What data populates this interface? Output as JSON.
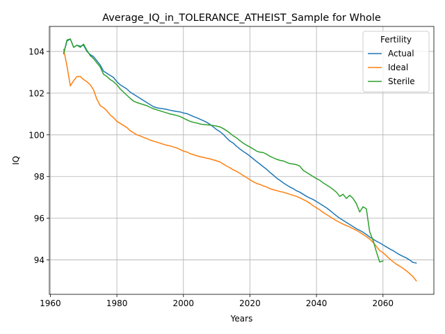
{
  "chart_data": {
    "type": "line",
    "title": "Average_IQ_in_TOLERANCE_ATHEIST_Sample for Whole",
    "xlabel": "Years",
    "ylabel": "IQ",
    "xlim": [
      1959.7,
      2075.3
    ],
    "ylim": [
      92.35,
      105.2
    ],
    "xticks": [
      1960,
      1980,
      2000,
      2020,
      2040,
      2060
    ],
    "yticks": [
      94,
      96,
      98,
      100,
      102,
      104
    ],
    "grid": true,
    "legend": {
      "title": "Fertility",
      "position": "top-right"
    },
    "series": [
      {
        "name": "Actual",
        "color": "#1f77b4",
        "x": [
          1964,
          1965,
          1966,
          1967,
          1968,
          1969,
          1970,
          1971,
          1972,
          1973,
          1974,
          1975,
          1976,
          1977,
          1978,
          1979,
          1980,
          1981,
          1982,
          1983,
          1984,
          1985,
          1986,
          1987,
          1988,
          1989,
          1990,
          1991,
          1992,
          1993,
          1994,
          1995,
          1996,
          1997,
          1998,
          1999,
          2000,
          2001,
          2002,
          2003,
          2004,
          2005,
          2006,
          2007,
          2008,
          2009,
          2010,
          2011,
          2012,
          2013,
          2014,
          2015,
          2016,
          2017,
          2018,
          2019,
          2020,
          2021,
          2022,
          2023,
          2024,
          2025,
          2026,
          2027,
          2028,
          2029,
          2030,
          2031,
          2032,
          2033,
          2034,
          2035,
          2036,
          2037,
          2038,
          2039,
          2040,
          2041,
          2042,
          2043,
          2044,
          2045,
          2046,
          2047,
          2048,
          2049,
          2050,
          2051,
          2052,
          2053,
          2054,
          2055,
          2056,
          2057,
          2058,
          2059,
          2060,
          2061,
          2062,
          2063,
          2064,
          2065,
          2066,
          2067,
          2068,
          2069,
          2070
        ],
        "values": [
          103.9,
          104.5,
          104.6,
          104.2,
          104.3,
          104.25,
          104.3,
          104.0,
          103.85,
          103.75,
          103.55,
          103.35,
          103.05,
          102.95,
          102.85,
          102.75,
          102.55,
          102.4,
          102.3,
          102.2,
          102.05,
          101.95,
          101.85,
          101.75,
          101.65,
          101.55,
          101.45,
          101.35,
          101.3,
          101.27,
          101.25,
          101.22,
          101.18,
          101.15,
          101.12,
          101.1,
          101.05,
          101.02,
          100.95,
          100.88,
          100.82,
          100.75,
          100.68,
          100.6,
          100.5,
          100.38,
          100.25,
          100.15,
          100.02,
          99.85,
          99.7,
          99.6,
          99.45,
          99.32,
          99.2,
          99.1,
          98.98,
          98.85,
          98.72,
          98.6,
          98.47,
          98.35,
          98.2,
          98.07,
          97.93,
          97.82,
          97.7,
          97.6,
          97.5,
          97.42,
          97.32,
          97.25,
          97.15,
          97.05,
          96.97,
          96.9,
          96.8,
          96.7,
          96.6,
          96.5,
          96.38,
          96.25,
          96.12,
          96.0,
          95.9,
          95.8,
          95.7,
          95.6,
          95.5,
          95.42,
          95.33,
          95.22,
          95.1,
          95.0,
          94.9,
          94.82,
          94.72,
          94.63,
          94.53,
          94.45,
          94.35,
          94.25,
          94.17,
          94.1,
          94.0,
          93.88,
          93.85
        ]
      },
      {
        "name": "Ideal",
        "color": "#ff7f0e",
        "x": [
          1964,
          1965,
          1966,
          1967,
          1968,
          1969,
          1970,
          1971,
          1972,
          1973,
          1974,
          1975,
          1976,
          1977,
          1978,
          1979,
          1980,
          1981,
          1982,
          1983,
          1984,
          1985,
          1986,
          1987,
          1988,
          1989,
          1990,
          1991,
          1992,
          1993,
          1994,
          1995,
          1996,
          1997,
          1998,
          1999,
          2000,
          2001,
          2002,
          2003,
          2004,
          2005,
          2006,
          2007,
          2008,
          2009,
          2010,
          2011,
          2012,
          2013,
          2014,
          2015,
          2016,
          2017,
          2018,
          2019,
          2020,
          2021,
          2022,
          2023,
          2024,
          2025,
          2026,
          2027,
          2028,
          2029,
          2030,
          2031,
          2032,
          2033,
          2034,
          2035,
          2036,
          2037,
          2038,
          2039,
          2040,
          2041,
          2042,
          2043,
          2044,
          2045,
          2046,
          2047,
          2048,
          2049,
          2050,
          2051,
          2052,
          2053,
          2054,
          2055,
          2056,
          2057,
          2058,
          2059,
          2060,
          2061,
          2062,
          2063,
          2064,
          2065,
          2066,
          2067,
          2068,
          2069,
          2070
        ],
        "values": [
          104.1,
          103.3,
          102.35,
          102.6,
          102.8,
          102.8,
          102.65,
          102.55,
          102.4,
          102.15,
          101.7,
          101.4,
          101.3,
          101.15,
          100.95,
          100.82,
          100.65,
          100.55,
          100.45,
          100.35,
          100.2,
          100.1,
          100.0,
          99.95,
          99.88,
          99.82,
          99.75,
          99.7,
          99.65,
          99.6,
          99.55,
          99.5,
          99.47,
          99.42,
          99.37,
          99.3,
          99.22,
          99.18,
          99.1,
          99.05,
          99.0,
          98.95,
          98.92,
          98.88,
          98.85,
          98.8,
          98.75,
          98.7,
          98.6,
          98.5,
          98.42,
          98.32,
          98.25,
          98.15,
          98.05,
          97.95,
          97.85,
          97.75,
          97.67,
          97.62,
          97.55,
          97.5,
          97.42,
          97.37,
          97.33,
          97.28,
          97.25,
          97.2,
          97.15,
          97.1,
          97.05,
          96.98,
          96.9,
          96.82,
          96.72,
          96.6,
          96.5,
          96.4,
          96.28,
          96.18,
          96.08,
          95.98,
          95.88,
          95.8,
          95.72,
          95.65,
          95.58,
          95.5,
          95.42,
          95.33,
          95.22,
          95.12,
          95.0,
          94.85,
          94.65,
          94.45,
          94.35,
          94.2,
          94.05,
          93.92,
          93.8,
          93.7,
          93.6,
          93.48,
          93.35,
          93.2,
          93.0
        ]
      },
      {
        "name": "Sterile",
        "color": "#2ca02c",
        "x": [
          1964,
          1965,
          1966,
          1967,
          1968,
          1969,
          1970,
          1971,
          1972,
          1973,
          1974,
          1975,
          1976,
          1977,
          1978,
          1979,
          1980,
          1981,
          1982,
          1983,
          1984,
          1985,
          1986,
          1987,
          1988,
          1989,
          1990,
          1991,
          1992,
          1993,
          1994,
          1995,
          1996,
          1997,
          1998,
          1999,
          2000,
          2001,
          2002,
          2003,
          2004,
          2005,
          2006,
          2007,
          2008,
          2009,
          2010,
          2011,
          2012,
          2013,
          2014,
          2015,
          2016,
          2017,
          2018,
          2019,
          2020,
          2021,
          2022,
          2023,
          2024,
          2025,
          2026,
          2027,
          2028,
          2029,
          2030,
          2031,
          2032,
          2033,
          2034,
          2035,
          2036,
          2037,
          2038,
          2039,
          2040,
          2041,
          2042,
          2043,
          2044,
          2045,
          2046,
          2047,
          2048,
          2049,
          2050,
          2051,
          2052,
          2053,
          2054,
          2055,
          2056,
          2057,
          2058,
          2059,
          2060
        ],
        "values": [
          103.9,
          104.55,
          104.6,
          104.2,
          104.3,
          104.2,
          104.35,
          104.05,
          103.8,
          103.65,
          103.45,
          103.25,
          102.9,
          102.8,
          102.65,
          102.55,
          102.4,
          102.2,
          102.05,
          101.9,
          101.75,
          101.62,
          101.55,
          101.5,
          101.45,
          101.4,
          101.32,
          101.25,
          101.2,
          101.15,
          101.1,
          101.05,
          101.0,
          100.97,
          100.93,
          100.88,
          100.8,
          100.72,
          100.65,
          100.6,
          100.57,
          100.52,
          100.5,
          100.48,
          100.47,
          100.45,
          100.42,
          100.38,
          100.3,
          100.2,
          100.08,
          99.95,
          99.85,
          99.72,
          99.6,
          99.5,
          99.42,
          99.32,
          99.22,
          99.17,
          99.15,
          99.07,
          98.97,
          98.9,
          98.83,
          98.78,
          98.75,
          98.68,
          98.62,
          98.6,
          98.57,
          98.5,
          98.3,
          98.2,
          98.1,
          98.0,
          97.9,
          97.82,
          97.7,
          97.6,
          97.5,
          97.38,
          97.25,
          97.05,
          97.15,
          96.95,
          97.1,
          96.95,
          96.7,
          96.3,
          96.55,
          96.45,
          95.35,
          94.95,
          94.4,
          93.9,
          93.95
        ]
      }
    ]
  }
}
